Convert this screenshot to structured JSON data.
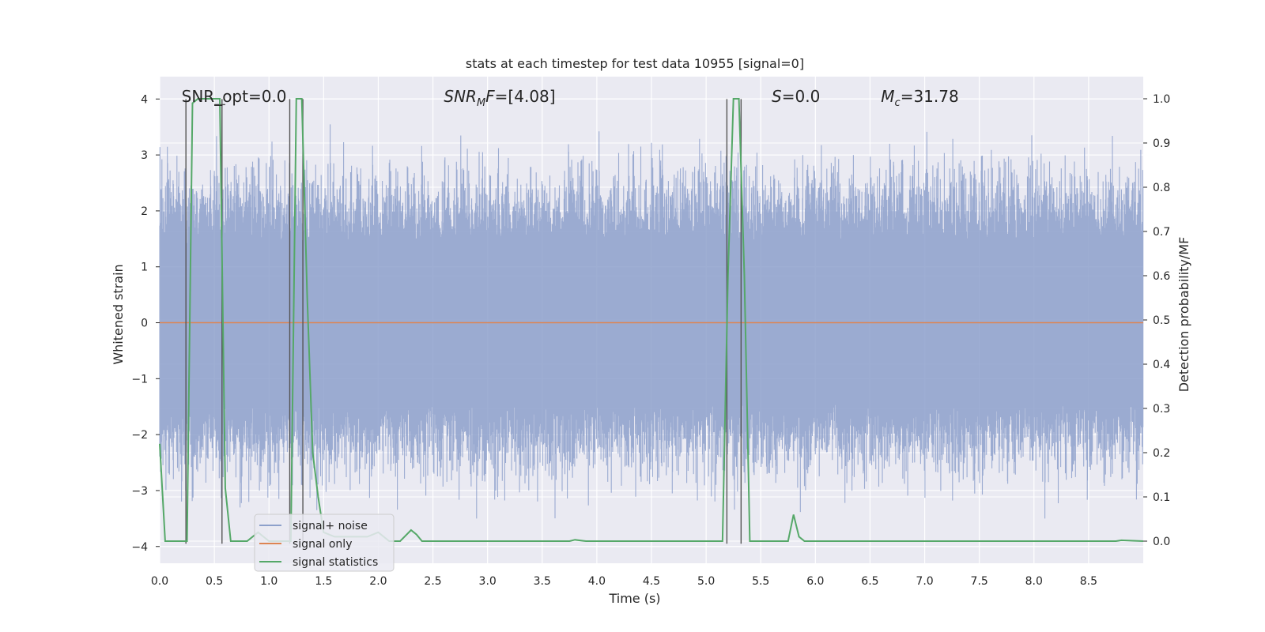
{
  "chart_data": {
    "type": "line",
    "title": "stats at each timestep for test data 10955 [signal=0]",
    "xlabel": "Time (s)",
    "ylabel": "Whitened strain",
    "y2label": "Detection probability/MF",
    "xlim": [
      0.0,
      9.0
    ],
    "ylim": [
      -4.3,
      4.4
    ],
    "y2lim": [
      -0.05,
      1.05
    ],
    "xticks": [
      "0.0",
      "0.5",
      "1.0",
      "1.5",
      "2.0",
      "2.5",
      "3.0",
      "3.5",
      "4.0",
      "4.5",
      "5.0",
      "5.5",
      "6.0",
      "6.5",
      "7.0",
      "7.5",
      "8.0",
      "8.5"
    ],
    "yticks": [
      "4",
      "3",
      "2",
      "1",
      "0",
      "−1",
      "−2",
      "−3",
      "−4"
    ],
    "y2ticks": [
      "1.0",
      "0.9",
      "0.8",
      "0.7",
      "0.6",
      "0.5",
      "0.4",
      "0.3",
      "0.2",
      "0.1",
      "0.0"
    ],
    "grid": true,
    "legend_position": "lower-left",
    "annotations": [
      {
        "label": "SNR_opt=0.0",
        "x": 0.2,
        "y": 4.05
      },
      {
        "label": "SNR_MF=[4.08]",
        "x": 2.6,
        "y": 4.05
      },
      {
        "label": "S=0.0",
        "x": 5.6,
        "y": 4.05
      },
      {
        "label": "M_c=31.78",
        "x": 6.6,
        "y": 4.05
      }
    ],
    "series": [
      {
        "name": "signal+ noise",
        "color": "#8da0cb",
        "style": "dense-noise",
        "envelope_approx": {
          "max_y": 4.0,
          "min_y": -3.5,
          "typical_y": 2.2
        }
      },
      {
        "name": "signal only",
        "color": "#dd8452",
        "x": [
          0.0,
          9.0
        ],
        "y": [
          0.0,
          0.0
        ]
      },
      {
        "name": "signal statistics",
        "color": "#55a868",
        "axis": "right",
        "x": [
          0.0,
          0.05,
          0.1,
          0.2,
          0.25,
          0.3,
          0.35,
          0.4,
          0.45,
          0.5,
          0.55,
          0.6,
          0.65,
          0.7,
          0.8,
          0.9,
          1.0,
          1.05,
          1.1,
          1.15,
          1.2,
          1.25,
          1.3,
          1.35,
          1.4,
          1.45,
          1.5,
          1.6,
          1.7,
          1.8,
          1.9,
          2.0,
          2.1,
          2.2,
          2.3,
          2.35,
          2.4,
          2.5,
          3.0,
          3.5,
          3.75,
          3.8,
          3.9,
          4.0,
          4.5,
          5.0,
          5.15,
          5.2,
          5.25,
          5.3,
          5.35,
          5.4,
          5.5,
          5.6,
          5.7,
          5.75,
          5.8,
          5.85,
          5.9,
          6.0,
          6.5,
          7.0,
          7.5,
          8.0,
          8.5,
          8.75,
          8.8,
          9.0
        ],
        "y": [
          0.22,
          0.0,
          0.0,
          0.0,
          0.0,
          0.99,
          1.0,
          1.0,
          1.0,
          1.0,
          1.0,
          0.12,
          0.0,
          0.0,
          0.0,
          0.02,
          0.0,
          0.0,
          0.0,
          0.0,
          0.0,
          1.0,
          1.0,
          0.55,
          0.2,
          0.1,
          0.02,
          0.01,
          0.01,
          0.01,
          0.01,
          0.02,
          0.0,
          0.0,
          0.025,
          0.015,
          0.0,
          0.0,
          0.0,
          0.0,
          0.0,
          0.003,
          0.0,
          0.0,
          0.0,
          0.0,
          0.0,
          0.6,
          1.0,
          1.0,
          0.6,
          0.0,
          0.0,
          0.0,
          0.0,
          0.0,
          0.06,
          0.01,
          0.0,
          0.0,
          0.0,
          0.0,
          0.0,
          0.0,
          0.0,
          0.0,
          0.002,
          0.0
        ]
      }
    ],
    "vertical_markers_x": [
      0.24,
      0.57,
      1.19,
      1.31,
      5.19,
      5.32
    ]
  }
}
